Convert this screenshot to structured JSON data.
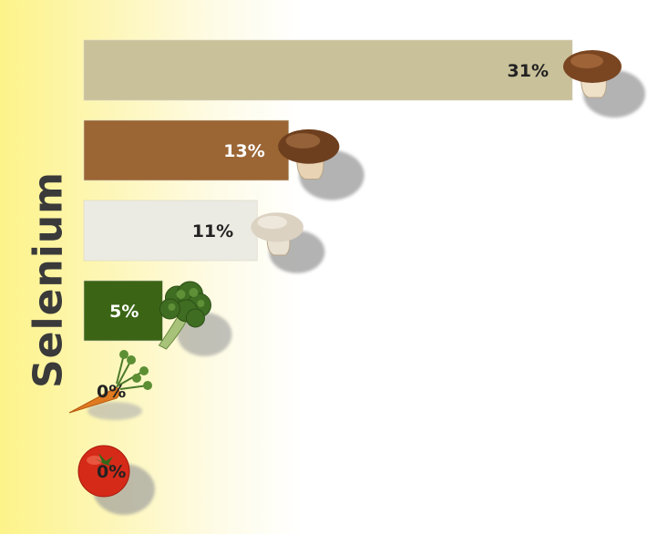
{
  "chart_data": {
    "type": "bar",
    "orientation": "horizontal",
    "ylabel": "Selenium",
    "categories": [
      "",
      "",
      "",
      "",
      "",
      ""
    ],
    "values": [
      31,
      13,
      11,
      5,
      0,
      0
    ],
    "data_labels": [
      "31%",
      "13%",
      "11%",
      "5%",
      "0%",
      "0%"
    ],
    "colors": [
      "#c9c19a",
      "#9b6534",
      "#ecebe3",
      "#3b6515",
      "#ffffff",
      "#ffffff"
    ],
    "label_colors": [
      "#222222",
      "#ffffff",
      "#222222",
      "#ffffff",
      "#222222",
      "#222222"
    ],
    "icons": [
      "brown-mushroom-icon",
      "shiitake-mushroom-icon",
      "white-mushroom-icon",
      "broccoli-icon",
      "carrot-icon",
      "tomato-icon"
    ],
    "xlim": [
      0,
      31
    ],
    "grid": false
  }
}
